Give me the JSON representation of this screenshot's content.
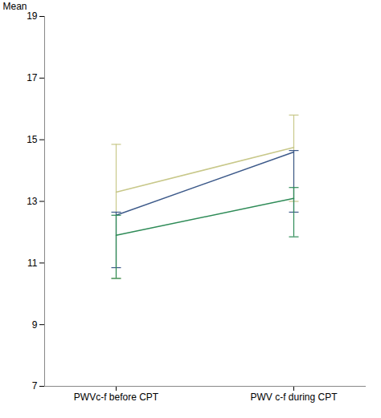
{
  "chart_data": {
    "type": "line",
    "ylabel": "Mean",
    "categories": [
      "PWVc-f before CPT",
      "PWV c-f during CPT"
    ],
    "series": [
      {
        "color": "#c8c88a",
        "values": [
          13.3,
          14.75
        ],
        "err_low": [
          2.8,
          1.75
        ],
        "err_high": [
          1.55,
          1.05
        ]
      },
      {
        "color": "#3d5a8a",
        "values": [
          12.55,
          14.6
        ],
        "err_low": [
          1.7,
          1.95
        ],
        "err_high": [
          0.1,
          0.05
        ]
      },
      {
        "color": "#2e8b57",
        "values": [
          11.9,
          13.1
        ],
        "err_low": [
          1.4,
          1.25
        ],
        "err_high": [
          0.65,
          0.35
        ]
      }
    ],
    "ylim": [
      7,
      19
    ],
    "yticks": [
      7,
      9,
      11,
      13,
      15,
      17,
      19
    ],
    "grid": false
  }
}
